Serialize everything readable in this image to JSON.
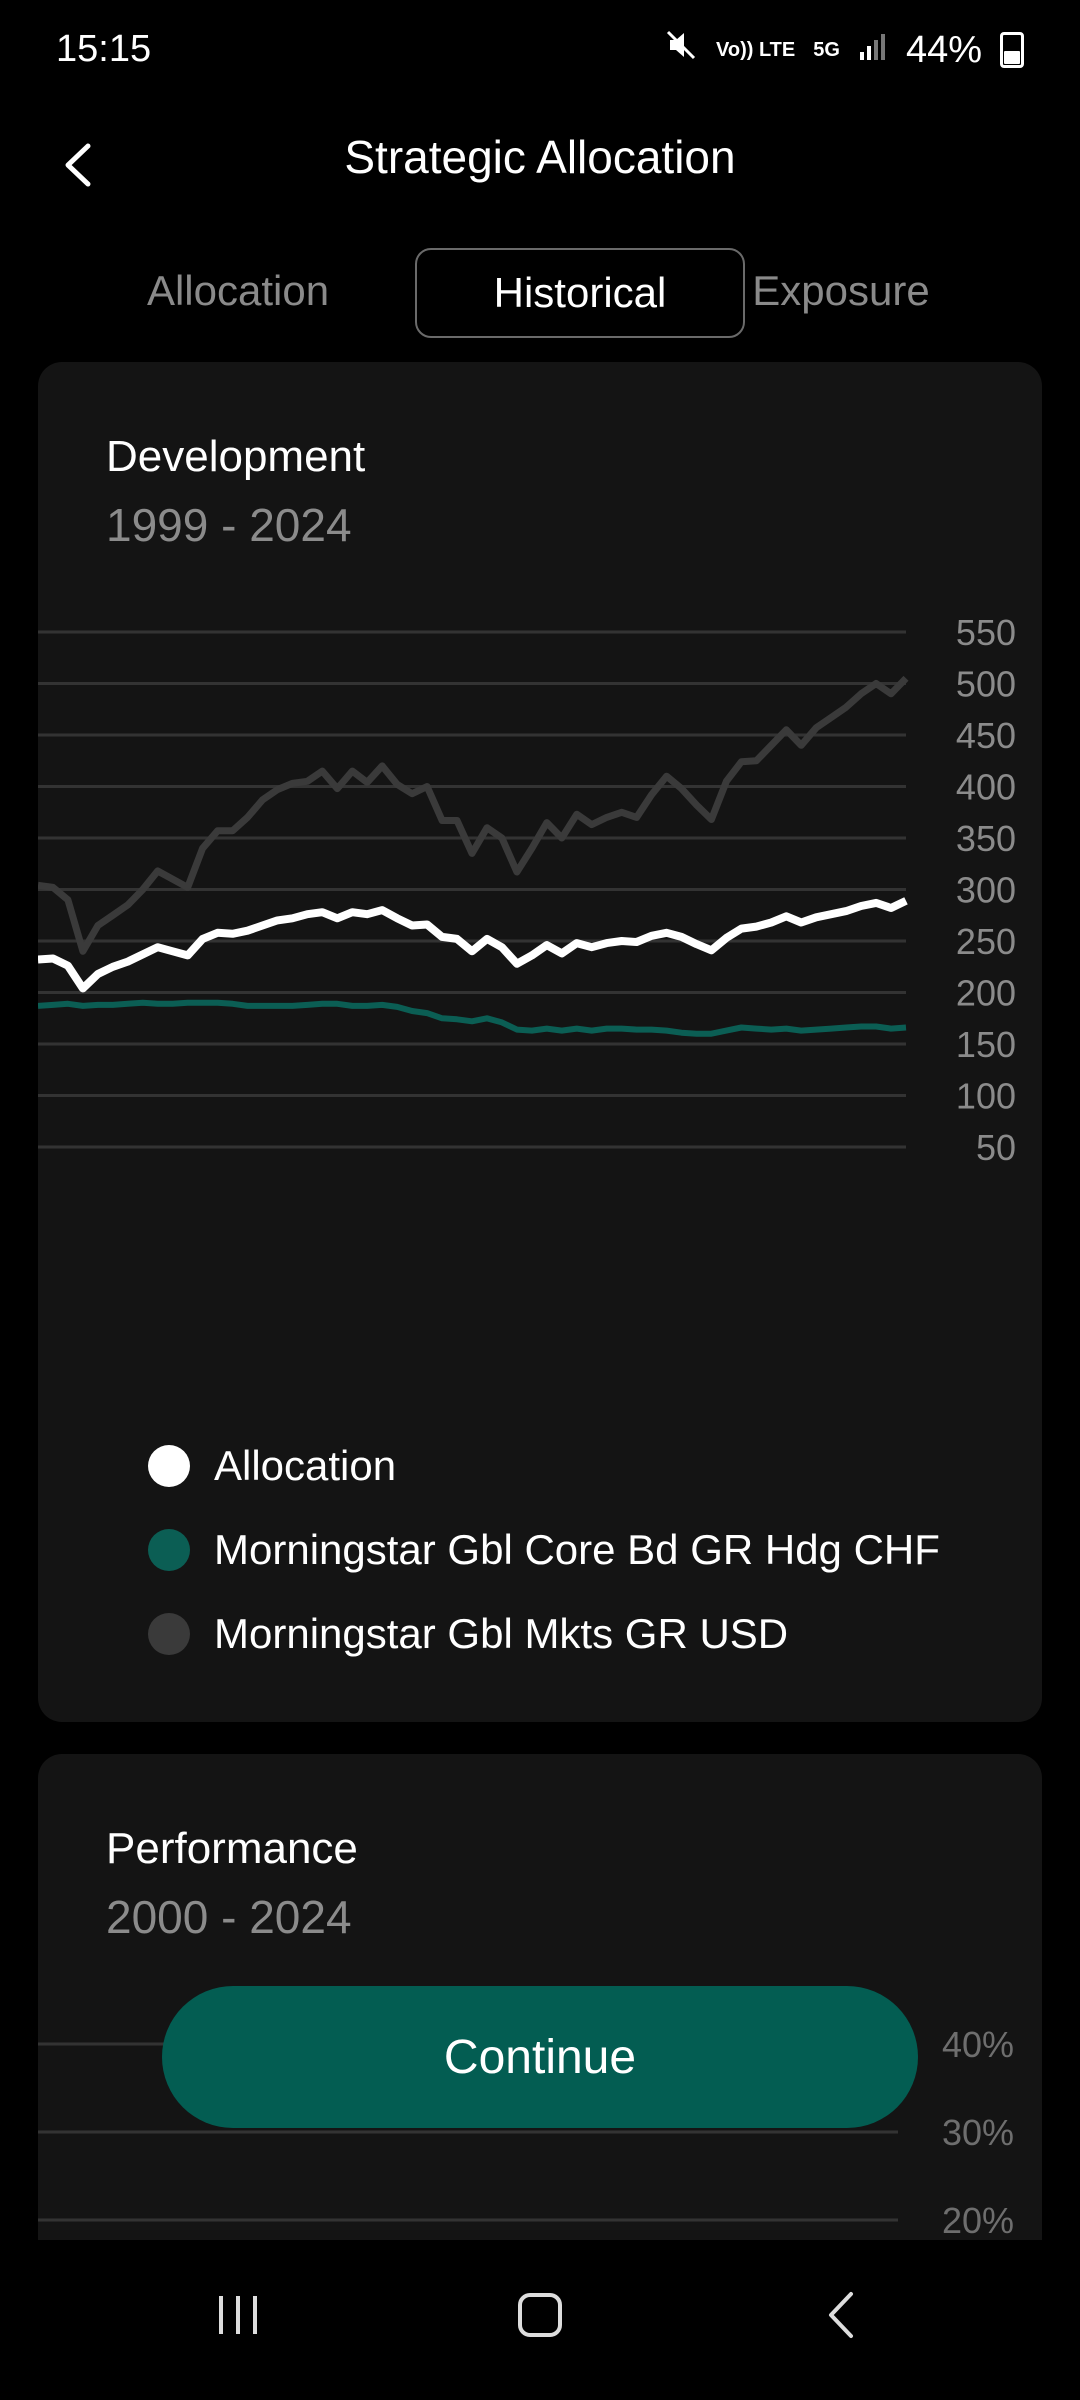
{
  "status": {
    "time": "15:15",
    "volte_label": "Vo)) LTE",
    "network_label": "5G",
    "battery": "44%"
  },
  "header": {
    "title": "Strategic Allocation"
  },
  "tabs": [
    {
      "label": "Allocation",
      "active": false
    },
    {
      "label": "Historical",
      "active": true
    },
    {
      "label": "Exposure",
      "active": false
    }
  ],
  "development": {
    "title": "Development",
    "period": "1999 - 2024",
    "legend": [
      {
        "label": "Allocation",
        "color": "#ffffff"
      },
      {
        "label": "Morningstar Gbl Core Bd GR Hdg CHF",
        "color": "#0b5e54"
      },
      {
        "label": "Morningstar Gbl Mkts GR USD",
        "color": "#3a3a3a"
      }
    ]
  },
  "chart_data": [
    {
      "type": "line",
      "ylim": [
        50,
        550
      ],
      "yticks": [
        "550",
        "500",
        "450",
        "400",
        "350",
        "300",
        "250",
        "200",
        "150",
        "100",
        "50"
      ],
      "grid": true,
      "legend_position": "bottom",
      "series": [
        {
          "name": "Morningstar Gbl Mkts GR USD",
          "color": "#3a3a3a",
          "values": [
            304,
            302,
            290,
            240,
            265,
            275,
            285,
            300,
            318,
            310,
            302,
            340,
            357,
            357,
            370,
            387,
            397,
            403,
            405,
            415,
            398,
            415,
            404,
            420,
            402,
            393,
            400,
            367,
            367,
            335,
            360,
            350,
            317,
            340,
            365,
            350,
            373,
            363,
            370,
            375,
            370,
            392,
            410,
            398,
            382,
            368,
            405,
            424,
            425,
            440,
            455,
            440,
            457,
            467,
            477,
            490,
            500,
            490,
            505
          ]
        },
        {
          "name": "Allocation",
          "color": "#ffffff",
          "values": [
            232,
            233,
            226,
            204,
            218,
            225,
            230,
            237,
            244,
            240,
            236,
            252,
            258,
            257,
            260,
            265,
            270,
            272,
            276,
            278,
            272,
            278,
            276,
            280,
            272,
            265,
            266,
            254,
            252,
            240,
            252,
            244,
            228,
            236,
            246,
            238,
            248,
            244,
            248,
            250,
            249,
            255,
            258,
            254,
            247,
            241,
            253,
            262,
            264,
            268,
            274,
            268,
            273,
            276,
            279,
            284,
            287,
            282,
            289
          ]
        },
        {
          "name": "Morningstar Gbl Core Bd GR Hdg CHF",
          "color": "#0b5e54",
          "values": [
            187,
            188,
            189,
            187,
            188,
            188,
            189,
            190,
            189,
            189,
            190,
            190,
            190,
            189,
            187,
            187,
            187,
            187,
            188,
            189,
            189,
            187,
            187,
            188,
            186,
            182,
            180,
            175,
            174,
            172,
            175,
            171,
            164,
            163,
            165,
            163,
            165,
            163,
            165,
            165,
            164,
            164,
            163,
            161,
            160,
            160,
            163,
            166,
            165,
            164,
            165,
            163,
            164,
            165,
            166,
            167,
            167,
            165,
            166
          ]
        }
      ]
    },
    {
      "type": "bar",
      "ylim": [
        "20%",
        "40%"
      ],
      "yticks": [
        "40%",
        "30%",
        "20%"
      ]
    }
  ],
  "performance": {
    "title": "Performance",
    "period": "2000 - 2024"
  },
  "actions": {
    "continue_label": "Continue"
  }
}
